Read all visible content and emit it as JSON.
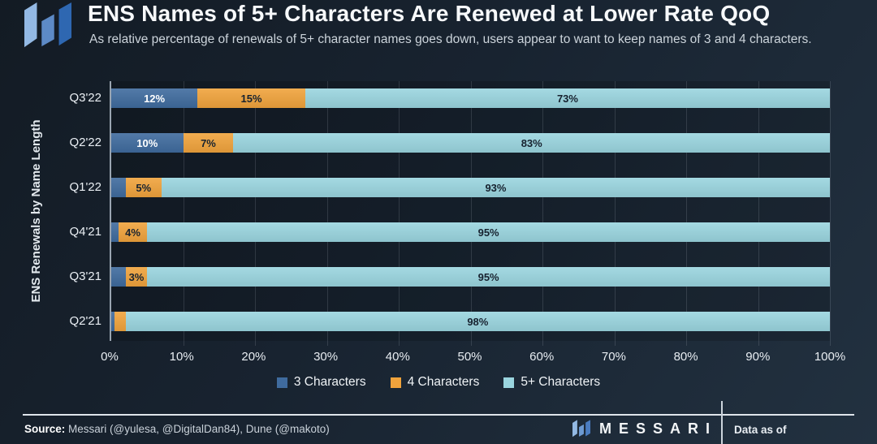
{
  "header": {
    "title": "ENS Names of 5+ Characters Are Renewed at Lower Rate QoQ",
    "subtitle": "As relative percentage of renewals of 5+ character names goes down, users appear to want to keep names of 3 and 4 characters."
  },
  "chart_data": {
    "type": "bar",
    "orientation": "horizontal",
    "stacked": true,
    "ylabel": "ENS Renewals by Name Length",
    "categories": [
      "Q3'22",
      "Q2'22",
      "Q1'22",
      "Q4'21",
      "Q3'21",
      "Q2'21"
    ],
    "series": [
      {
        "name": "3 Characters",
        "color": "#3f6b9e",
        "label_color": "#ffffff",
        "values": [
          12,
          10,
          2,
          1,
          2,
          0.5
        ],
        "labels": [
          "12%",
          "10%",
          "",
          "",
          "",
          ""
        ]
      },
      {
        "name": "4 Characters",
        "color": "#f0a33c",
        "label_color": "#17222f",
        "values": [
          15,
          7,
          5,
          4,
          3,
          1.5
        ],
        "labels": [
          "15%",
          "7%",
          "5%",
          "4%",
          "3%",
          ""
        ]
      },
      {
        "name": "5+ Characters",
        "color": "#9ad5df",
        "label_color": "#17222f",
        "values": [
          73,
          83,
          93,
          95,
          95,
          98
        ],
        "labels": [
          "73%",
          "83%",
          "93%",
          "95%",
          "95%",
          "98%"
        ]
      }
    ],
    "x_ticks": [
      "0%",
      "10%",
      "20%",
      "30%",
      "40%",
      "50%",
      "60%",
      "70%",
      "80%",
      "90%",
      "100%"
    ],
    "xlim": [
      0,
      100
    ],
    "grid": "vertical",
    "legend_position": "bottom"
  },
  "footer": {
    "source_label": "Source:",
    "source_text": " Messari (@yulesa, @DigitalDan84), Dune (@makoto)",
    "brand": "MESSARI",
    "data_as_of": "Data as of"
  },
  "colors": {
    "background_start": "#131b24",
    "background_end": "#223140",
    "axis": "#9aa5b1",
    "series_3ch": "#3f6b9e",
    "series_4ch": "#f0a33c",
    "series_5ch": "#9ad5df"
  }
}
